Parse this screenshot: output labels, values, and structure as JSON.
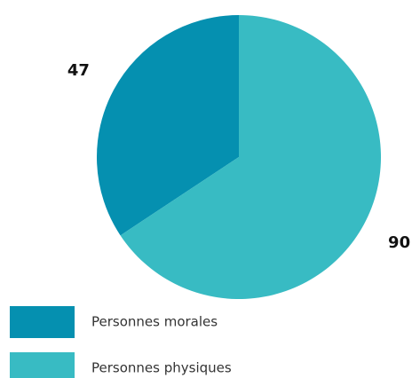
{
  "chart_data": {
    "type": "pie",
    "categories": [
      "Personnes morales",
      "Personnes physiques"
    ],
    "values": [
      47,
      90
    ],
    "colors": [
      "#0590b0",
      "#38bbc3"
    ],
    "start_angle": 0,
    "direction": "counterclockwise",
    "legend": "bottom-left"
  }
}
